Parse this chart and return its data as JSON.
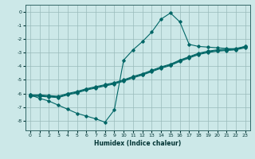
{
  "xlabel": "Humidex (Indice chaleur)",
  "bg_color": "#cce8e8",
  "grid_color": "#99bbbb",
  "line_color": "#006666",
  "xlim": [
    -0.5,
    23.5
  ],
  "ylim": [
    -8.7,
    0.5
  ],
  "xticks": [
    0,
    1,
    2,
    3,
    4,
    5,
    6,
    7,
    8,
    9,
    10,
    11,
    12,
    13,
    14,
    15,
    16,
    17,
    18,
    19,
    20,
    21,
    22,
    23
  ],
  "yticks": [
    0,
    -1,
    -2,
    -3,
    -4,
    -5,
    -6,
    -7,
    -8
  ],
  "curve_x": [
    0,
    1,
    2,
    3,
    4,
    5,
    6,
    7,
    8,
    9,
    10,
    11,
    12,
    13,
    14,
    15,
    16,
    17,
    18,
    19,
    20,
    21,
    22,
    23
  ],
  "curve_y": [
    -6.1,
    -6.35,
    -6.55,
    -6.85,
    -7.15,
    -7.45,
    -7.65,
    -7.85,
    -8.1,
    -7.2,
    -3.55,
    -2.8,
    -2.2,
    -1.5,
    -0.55,
    -0.1,
    -0.75,
    -2.4,
    -2.55,
    -2.6,
    -2.65,
    -2.7,
    -2.75,
    -2.55
  ],
  "line1_x": [
    0,
    1,
    2,
    3,
    4,
    5,
    6,
    7,
    8,
    9,
    10,
    11,
    12,
    13,
    14,
    15,
    16,
    17,
    18,
    19,
    20,
    21,
    22,
    23
  ],
  "line1_y": [
    -6.1,
    -6.1,
    -6.15,
    -6.2,
    -6.0,
    -5.85,
    -5.65,
    -5.5,
    -5.35,
    -5.2,
    -5.0,
    -4.75,
    -4.55,
    -4.3,
    -4.05,
    -3.85,
    -3.55,
    -3.3,
    -3.05,
    -2.9,
    -2.8,
    -2.75,
    -2.7,
    -2.55
  ],
  "line2_x": [
    0,
    1,
    2,
    3,
    4,
    5,
    6,
    7,
    8,
    9,
    10,
    11,
    12,
    13,
    14,
    15,
    16,
    17,
    18,
    19,
    20,
    21,
    22,
    23
  ],
  "line2_y": [
    -6.15,
    -6.15,
    -6.2,
    -6.25,
    -6.05,
    -5.9,
    -5.7,
    -5.55,
    -5.4,
    -5.25,
    -5.05,
    -4.8,
    -4.6,
    -4.35,
    -4.1,
    -3.9,
    -3.6,
    -3.35,
    -3.1,
    -2.95,
    -2.85,
    -2.8,
    -2.75,
    -2.6
  ],
  "line3_x": [
    0,
    1,
    2,
    3,
    4,
    5,
    6,
    7,
    8,
    9,
    10,
    11,
    12,
    13,
    14,
    15,
    16,
    17,
    18,
    19,
    20,
    21,
    22,
    23
  ],
  "line3_y": [
    -6.2,
    -6.2,
    -6.25,
    -6.3,
    -6.1,
    -5.95,
    -5.75,
    -5.6,
    -5.45,
    -5.3,
    -5.1,
    -4.85,
    -4.65,
    -4.4,
    -4.15,
    -3.95,
    -3.65,
    -3.4,
    -3.15,
    -3.0,
    -2.9,
    -2.85,
    -2.8,
    -2.65
  ]
}
